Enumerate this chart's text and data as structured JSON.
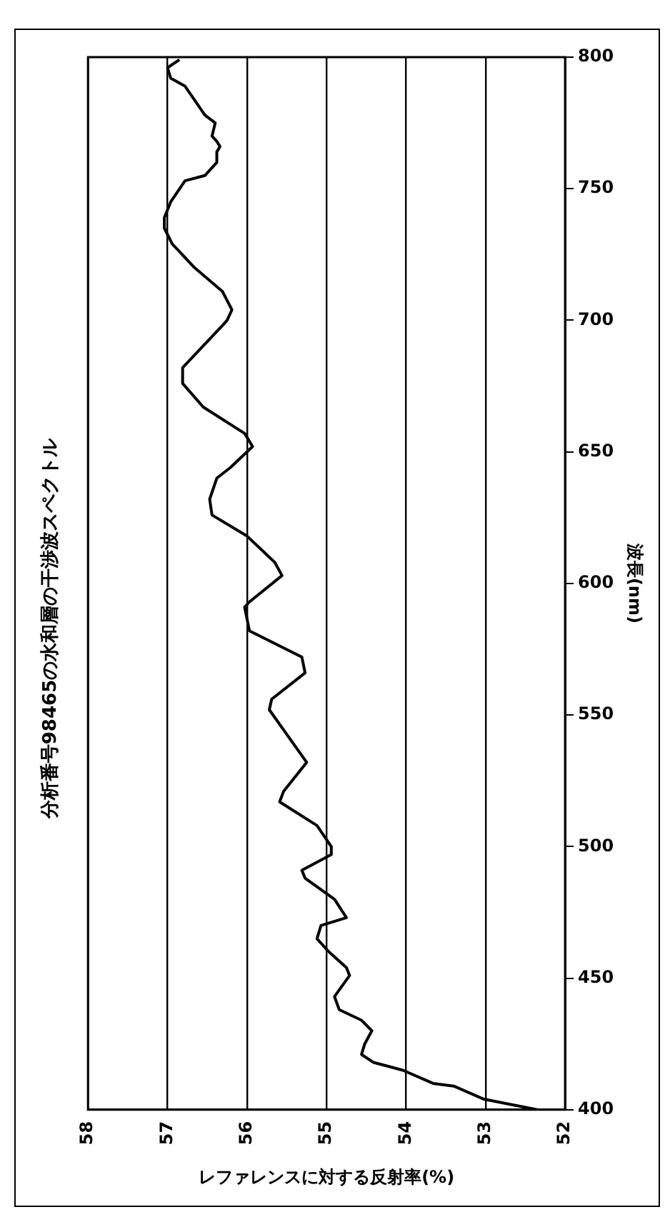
{
  "chart_data": {
    "type": "line",
    "title": "分析番号98465の水和層の干渉波スペクトル",
    "xlabel": "レファレンスに対する反射率(%)",
    "ylabel": "波長(nm)",
    "series": [
      {
        "color": "#000000",
        "x": [
          52.35,
          53.02,
          53.4,
          53.66,
          54.04,
          54.41,
          54.56,
          54.52,
          54.43,
          54.56,
          54.84,
          54.9,
          54.71,
          54.75,
          54.97,
          55.12,
          55.07,
          54.75,
          54.9,
          55.27,
          55.31,
          54.94,
          54.94,
          55.12,
          55.59,
          55.54,
          55.25,
          55.72,
          55.69,
          55.27,
          55.31,
          55.97,
          56.03,
          55.97,
          55.56,
          55.65,
          56.0,
          56.44,
          56.47,
          56.38,
          56.21,
          55.93,
          56.03,
          56.55,
          56.81,
          56.81,
          56.59,
          56.31,
          56.25,
          56.19,
          56.31,
          56.66,
          56.94,
          57.04,
          57.04,
          56.96,
          56.78,
          56.53,
          56.38,
          56.38,
          56.34,
          56.38,
          56.44,
          56.4,
          56.53,
          56.78,
          56.96,
          57.0,
          56.85
        ],
        "values": [
          400,
          404,
          409,
          410,
          415,
          418,
          421,
          425,
          430,
          434,
          438,
          443,
          451,
          454,
          460,
          465,
          470,
          473,
          480,
          488,
          491,
          497,
          500,
          508,
          517,
          521,
          532,
          552,
          556,
          566,
          572,
          582,
          591,
          593,
          603,
          608,
          618,
          626,
          632,
          640,
          644,
          652,
          657,
          667,
          676,
          682,
          689,
          698,
          700,
          704,
          711,
          720,
          729,
          735,
          739,
          745,
          753,
          755,
          760,
          764,
          766,
          768,
          770,
          775,
          778,
          789,
          792,
          796,
          799
        ]
      }
    ],
    "xlim": [
      58,
      52
    ],
    "xticks": [
      58,
      57,
      56,
      55,
      54,
      53,
      52
    ],
    "ylim": [
      400,
      800
    ],
    "yticks": [
      400,
      450,
      500,
      550,
      600,
      650,
      700,
      750,
      800
    ],
    "grid": "x",
    "marker": "none",
    "line_style": "solid"
  }
}
